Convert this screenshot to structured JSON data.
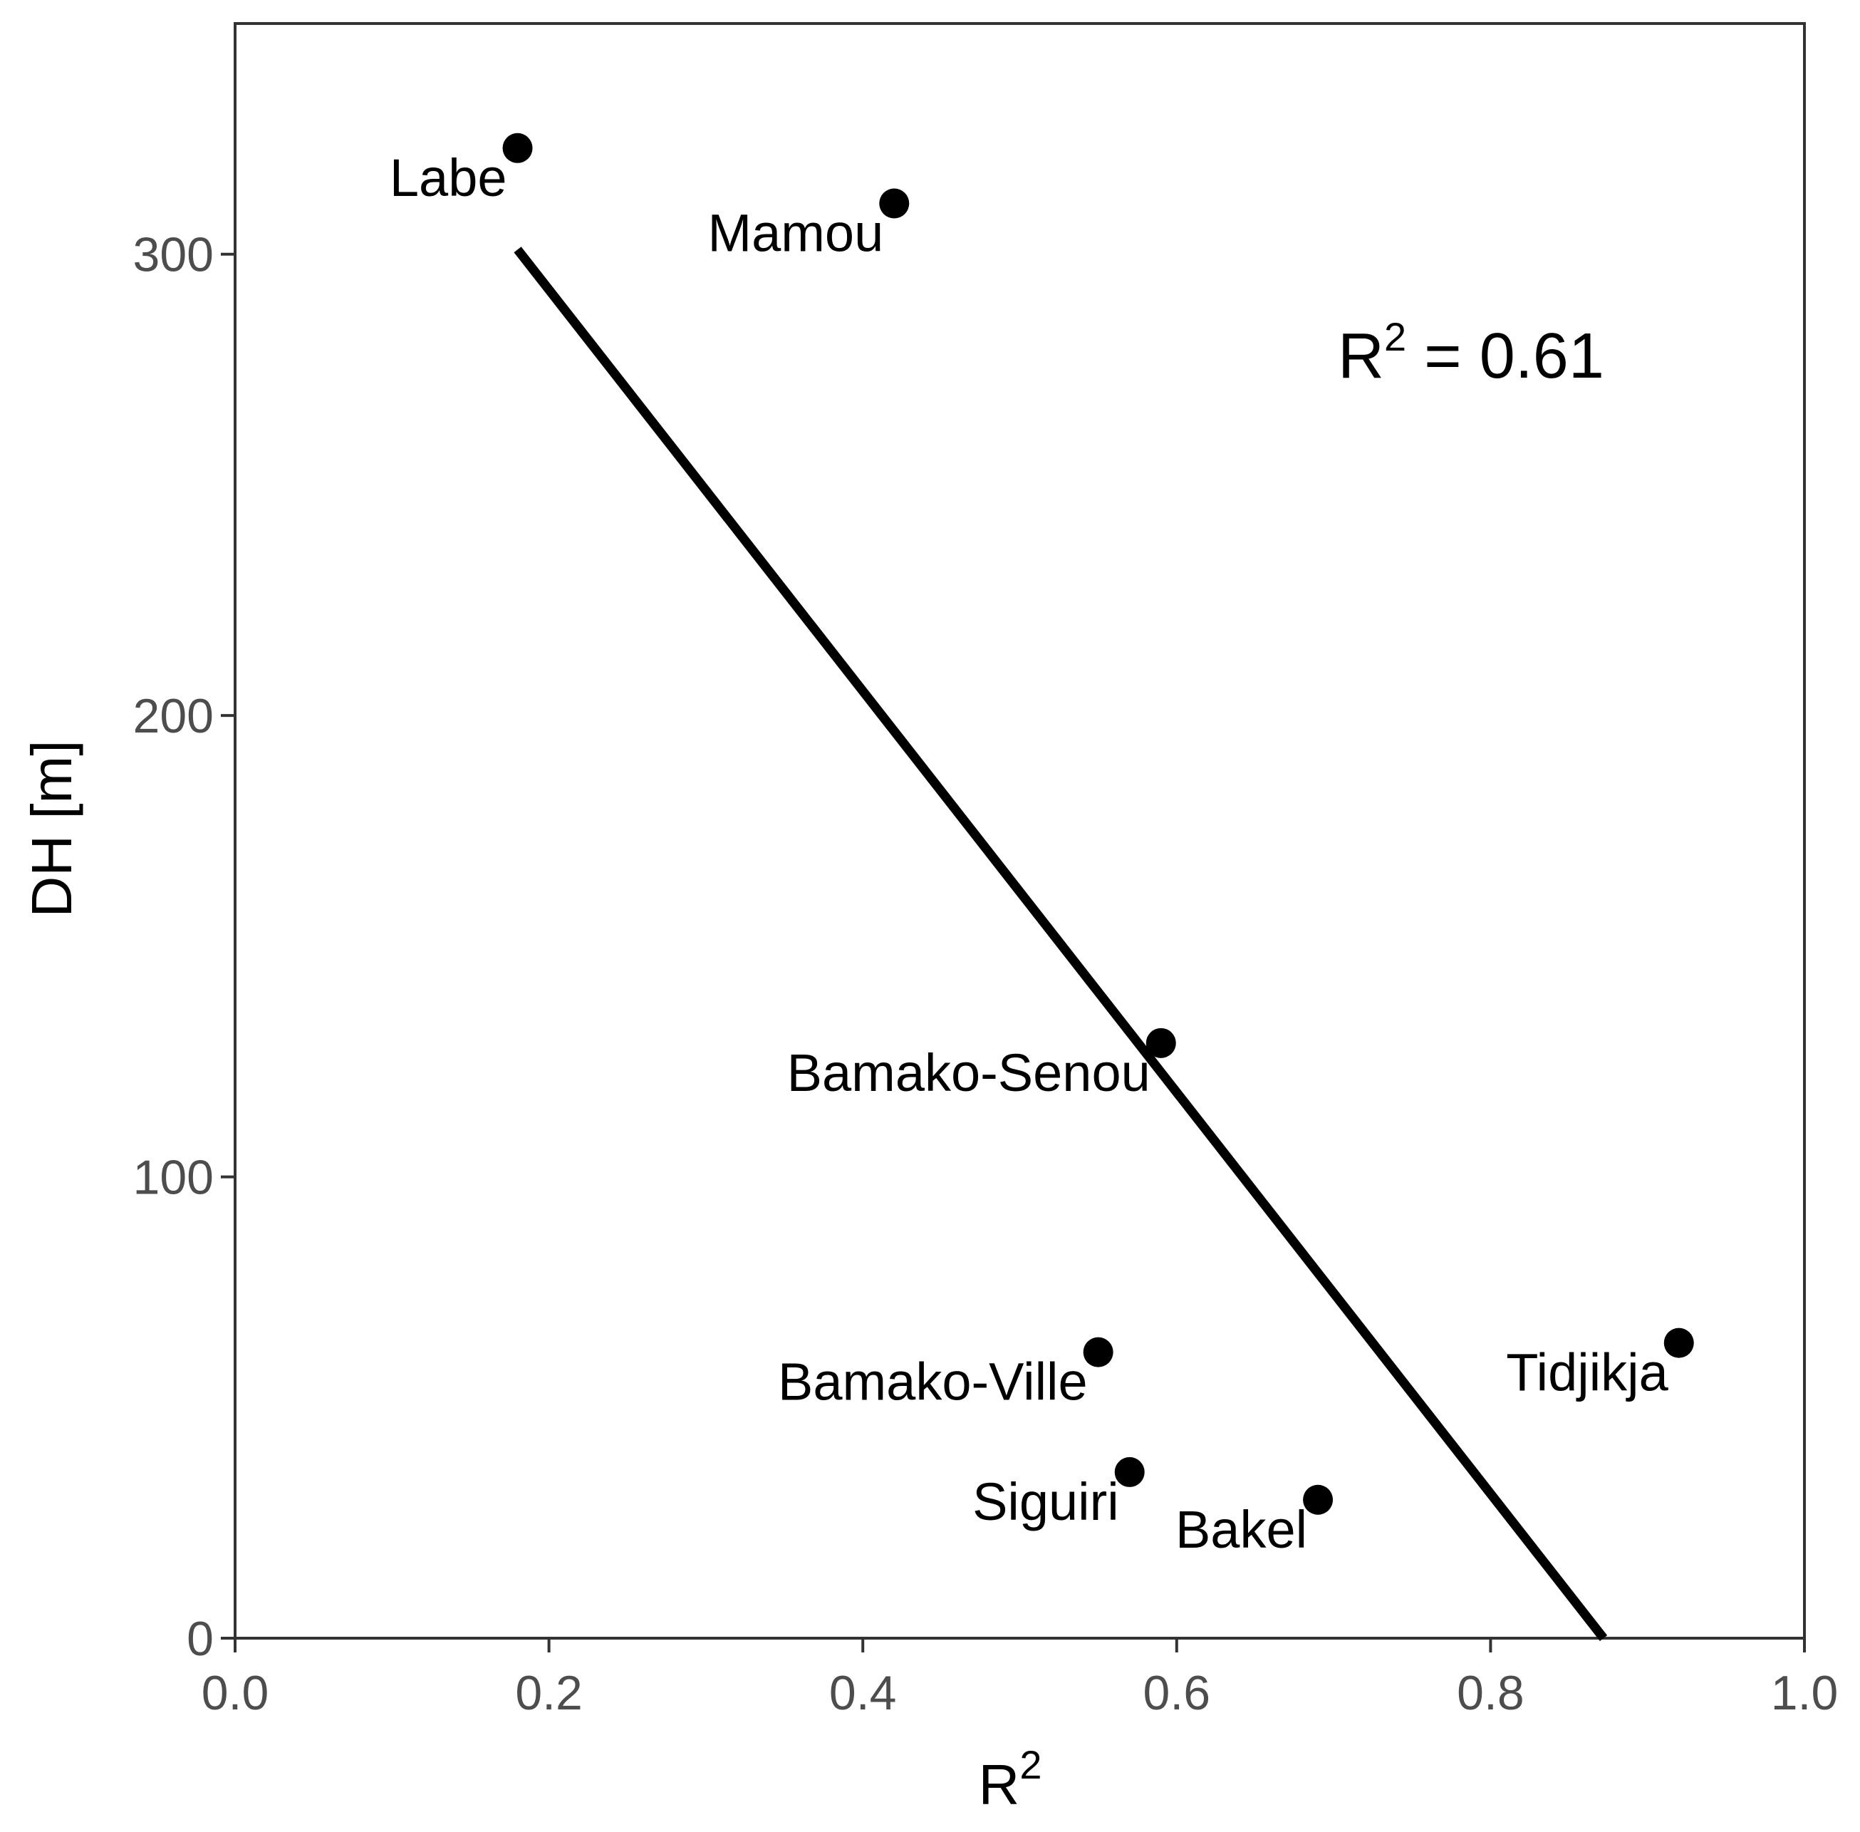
{
  "chart_data": {
    "type": "scatter",
    "title": "",
    "xlabel": "R",
    "xlabel_superscript": "2",
    "ylabel": "DH [m]",
    "xlim": [
      0.0,
      1.0
    ],
    "ylim": [
      0,
      350
    ],
    "xticks": [
      0.0,
      0.2,
      0.4,
      0.6,
      0.8,
      1.0
    ],
    "xtick_labels": [
      "0.0",
      "0.2",
      "0.4",
      "0.6",
      "0.8",
      "1.0"
    ],
    "yticks": [
      0,
      100,
      200,
      300
    ],
    "ytick_labels": [
      "0",
      "100",
      "200",
      "300"
    ],
    "grid": false,
    "legend": null,
    "points": [
      {
        "label": "Labe",
        "x": 0.18,
        "y": 323
      },
      {
        "label": "Mamou",
        "x": 0.42,
        "y": 311
      },
      {
        "label": "Bamako-Senou",
        "x": 0.59,
        "y": 129
      },
      {
        "label": "Bamako-Ville",
        "x": 0.55,
        "y": 62
      },
      {
        "label": "Siguiri",
        "x": 0.57,
        "y": 36
      },
      {
        "label": "Bakel",
        "x": 0.69,
        "y": 30
      },
      {
        "label": "Tidjikja",
        "x": 0.92,
        "y": 64
      }
    ],
    "fit_line": {
      "type": "linear",
      "x_start": 0.18,
      "y_start": 301,
      "x_end": 0.872,
      "y_end": 0
    },
    "annotations": [
      {
        "text_main": "R",
        "text_sup": "2",
        "text_rest": " =  0.61",
        "x": 0.7,
        "y": 272
      }
    ]
  },
  "colors": {
    "points": "#000000",
    "line": "#000000",
    "axis": "#333333",
    "tick_label": "#4d4d4d"
  }
}
